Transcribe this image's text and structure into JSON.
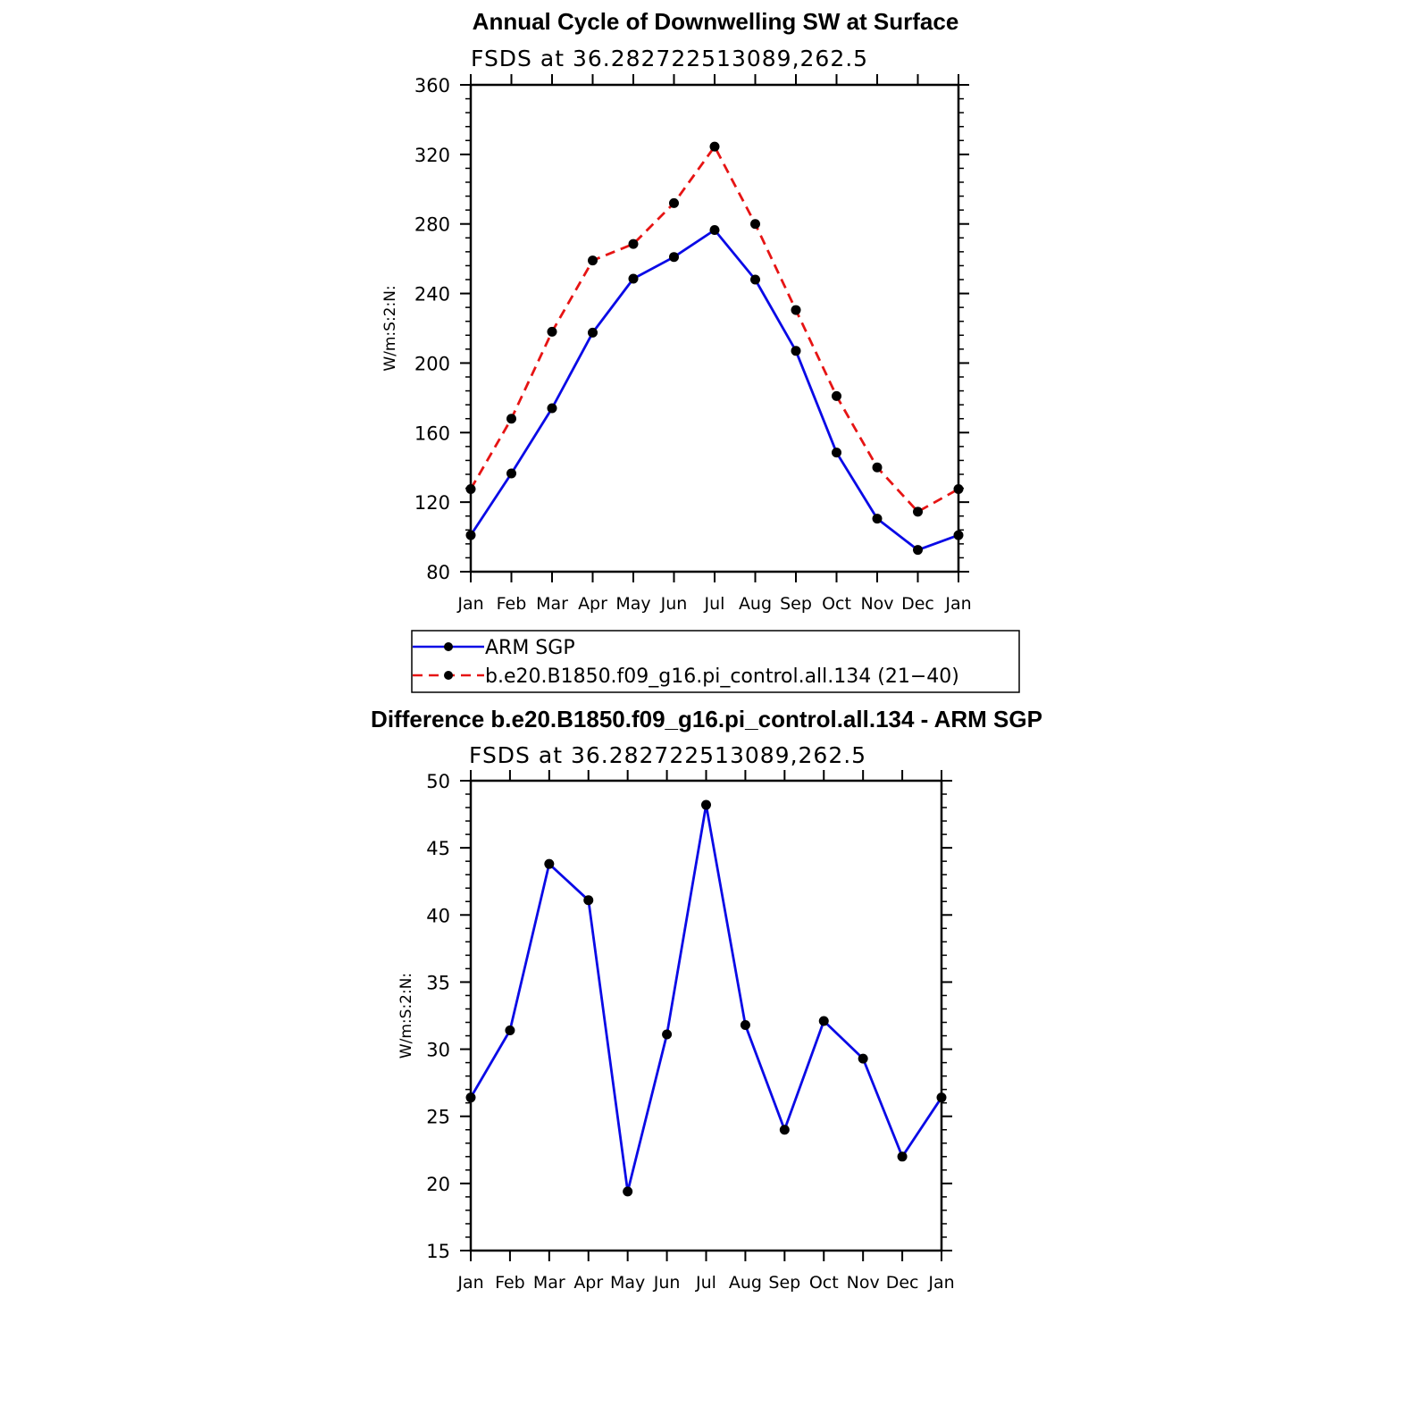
{
  "colors": {
    "arm": "#0a0ae6",
    "model": "#e61414",
    "marker": "#000000",
    "axis": "#000000"
  },
  "legend": {
    "items": [
      {
        "label": "ARM SGP",
        "color": "#0a0ae6",
        "dash": "solid"
      },
      {
        "label": "b.e20.B1850.f09_g16.pi_control.all.134 (21−40)",
        "color": "#e61414",
        "dash": "dashed"
      }
    ]
  },
  "chart_data": [
    {
      "type": "line",
      "title": "Annual Cycle of Downwelling SW at Surface",
      "subtitle": "FSDS at 36.282722513089,262.5",
      "ylabel": "W/m:S:2:N:",
      "xlabel": "",
      "categories": [
        "Jan",
        "Feb",
        "Mar",
        "Apr",
        "May",
        "Jun",
        "Jul",
        "Aug",
        "Sep",
        "Oct",
        "Nov",
        "Dec",
        "Jan"
      ],
      "ylim": [
        80,
        360
      ],
      "yticks": [
        80,
        120,
        160,
        200,
        240,
        280,
        320,
        360
      ],
      "y_minor_step": 8,
      "series": [
        {
          "name": "ARM SGP",
          "values": [
            101,
            136.5,
            174,
            217.5,
            248.5,
            261,
            276.5,
            248,
            207,
            148.5,
            110.5,
            92.5,
            101
          ]
        },
        {
          "name": "b.e20.B1850.f09_g16.pi_control.all.134 (21−40)",
          "values": [
            127.5,
            168,
            218,
            259,
            268.5,
            292,
            324.5,
            280,
            230.5,
            181,
            140,
            114.5,
            127.5
          ]
        }
      ],
      "grid": false,
      "legend_position": "below"
    },
    {
      "type": "line",
      "title": "Difference b.e20.B1850.f09_g16.pi_control.all.134 - ARM SGP",
      "subtitle": "FSDS at 36.282722513089,262.5",
      "ylabel": "W/m:S:2:N:",
      "xlabel": "",
      "categories": [
        "Jan",
        "Feb",
        "Mar",
        "Apr",
        "May",
        "Jun",
        "Jul",
        "Aug",
        "Sep",
        "Oct",
        "Nov",
        "Dec",
        "Jan"
      ],
      "ylim": [
        15,
        50
      ],
      "yticks": [
        15,
        20,
        25,
        30,
        35,
        40,
        45,
        50
      ],
      "y_minor_step": 1,
      "series": [
        {
          "values": [
            26.4,
            31.4,
            43.8,
            41.1,
            19.4,
            31.1,
            48.2,
            31.8,
            24.0,
            32.1,
            29.3,
            22.0,
            26.4
          ]
        }
      ],
      "grid": false
    }
  ]
}
